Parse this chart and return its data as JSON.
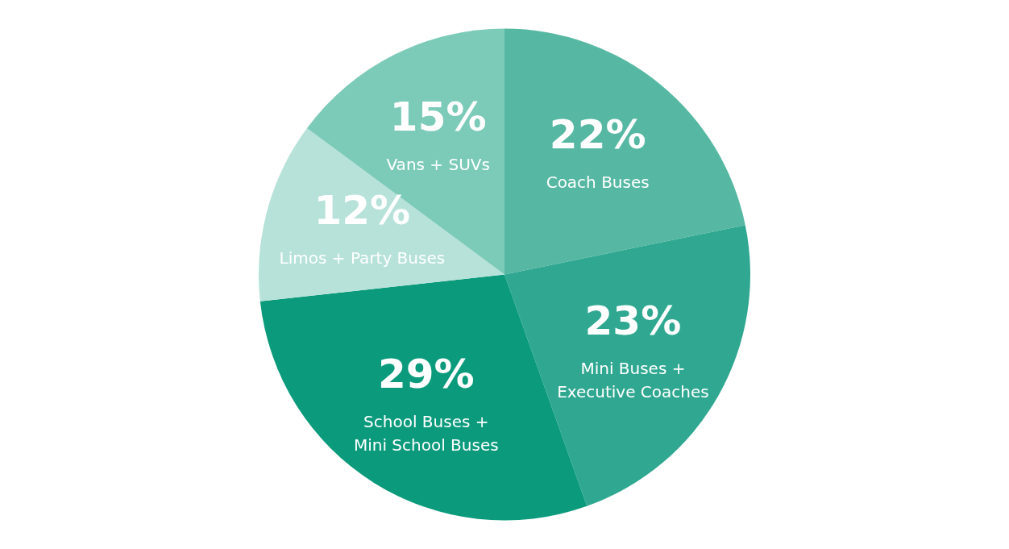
{
  "chart_data": {
    "type": "pie",
    "categories": [
      "Coach Buses",
      "Mini Buses + Executive Coaches",
      "School Buses + Mini School Buses",
      "Limos + Party Buses",
      "Vans + SUVs"
    ],
    "values": [
      22,
      23,
      29,
      12,
      15
    ],
    "colors": [
      "#56b8a3",
      "#30a891",
      "#0b9b7c",
      "#b7e2d9",
      "#7ccab8"
    ],
    "value_labels": [
      "22%",
      "23%",
      "29%",
      "12%",
      "15%"
    ]
  }
}
